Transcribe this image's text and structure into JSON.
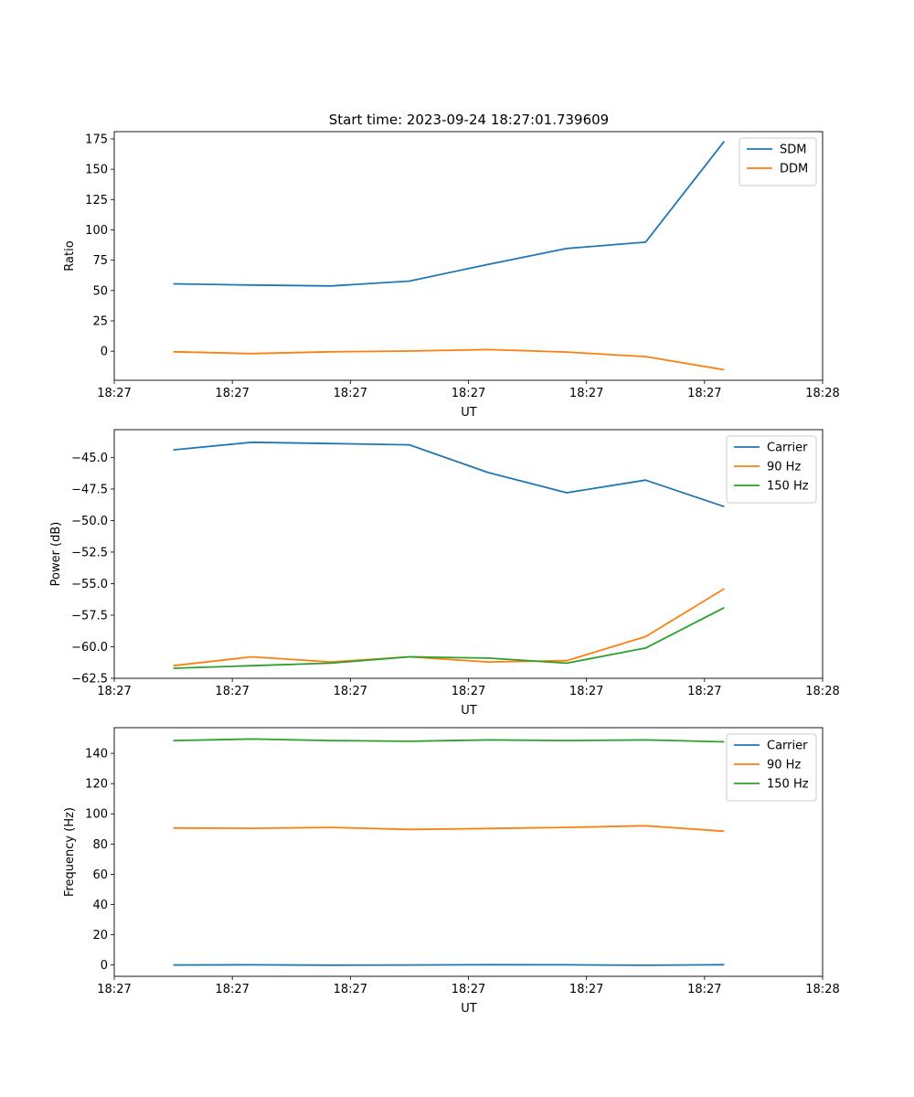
{
  "figure": {
    "title": "Start time: 2023-09-24 18:27:01.739609"
  },
  "chart_data": [
    {
      "type": "line",
      "title": "Start time: 2023-09-24 18:27:01.739609",
      "xlabel": "UT",
      "ylabel": "Ratio",
      "x": [
        1,
        2,
        3,
        4,
        5,
        6,
        7,
        8
      ],
      "xlim": [
        0.25,
        9.25
      ],
      "xticks": [
        0.25,
        1.75,
        3.25,
        4.75,
        6.25,
        7.75,
        9.25
      ],
      "xtick_labels": [
        "18:27",
        "18:27",
        "18:27",
        "18:27",
        "18:27",
        "18:27",
        "18:28"
      ],
      "ylim": [
        -24,
        181
      ],
      "yticks": [
        0,
        25,
        50,
        75,
        100,
        125,
        150,
        175
      ],
      "ytick_labels": [
        "0",
        "25",
        "50",
        "75",
        "100",
        "125",
        "150",
        "175"
      ],
      "legend_position": "top-right",
      "series": [
        {
          "name": "SDM",
          "color": "#1f77b4",
          "values": [
            55.5,
            54.5,
            53.8,
            57.8,
            71.6,
            84.7,
            89.9,
            173.0
          ]
        },
        {
          "name": "DDM",
          "color": "#ff7f0e",
          "values": [
            -0.5,
            -2.0,
            -0.5,
            0.1,
            1.3,
            -0.7,
            -4.5,
            -15.3
          ]
        }
      ]
    },
    {
      "type": "line",
      "title": "",
      "xlabel": "UT",
      "ylabel": "Power (dB)",
      "x": [
        1,
        2,
        3,
        4,
        5,
        6,
        7,
        8
      ],
      "xlim": [
        0.25,
        9.25
      ],
      "xticks": [
        0.25,
        1.75,
        3.25,
        4.75,
        6.25,
        7.75,
        9.25
      ],
      "xtick_labels": [
        "18:27",
        "18:27",
        "18:27",
        "18:27",
        "18:27",
        "18:27",
        "18:28"
      ],
      "ylim": [
        -62.5,
        -42.8
      ],
      "yticks": [
        -45.0,
        -47.5,
        -50.0,
        -52.5,
        -55.0,
        -57.5,
        -60.0,
        -62.5
      ],
      "ytick_labels": [
        "−45.0",
        "−47.5",
        "−50.0",
        "−52.5",
        "−55.0",
        "−57.5",
        "−60.0",
        "−62.5"
      ],
      "legend_position": "top-right",
      "series": [
        {
          "name": "Carrier",
          "color": "#1f77b4",
          "values": [
            -44.4,
            -43.8,
            -43.9,
            -44.0,
            -46.2,
            -47.8,
            -46.8,
            -48.9
          ]
        },
        {
          "name": "90 Hz",
          "color": "#ff7f0e",
          "values": [
            -61.5,
            -60.8,
            -61.2,
            -60.8,
            -61.2,
            -61.1,
            -59.2,
            -55.4
          ]
        },
        {
          "name": "150 Hz",
          "color": "#2ca02c",
          "values": [
            -61.7,
            -61.5,
            -61.3,
            -60.8,
            -60.9,
            -61.3,
            -60.1,
            -56.9
          ]
        }
      ]
    },
    {
      "type": "line",
      "title": "",
      "xlabel": "UT",
      "ylabel": "Frequency (Hz)",
      "x": [
        1,
        2,
        3,
        4,
        5,
        6,
        7,
        8
      ],
      "xlim": [
        0.25,
        9.25
      ],
      "xticks": [
        0.25,
        1.75,
        3.25,
        4.75,
        6.25,
        7.75,
        9.25
      ],
      "xtick_labels": [
        "18:27",
        "18:27",
        "18:27",
        "18:27",
        "18:27",
        "18:27",
        "18:28"
      ],
      "ylim": [
        -7.5,
        157
      ],
      "yticks": [
        0,
        20,
        40,
        60,
        80,
        100,
        120,
        140
      ],
      "ytick_labels": [
        "0",
        "20",
        "40",
        "60",
        "80",
        "100",
        "120",
        "140"
      ],
      "legend_position": "top-right",
      "series": [
        {
          "name": "Carrier",
          "color": "#1f77b4",
          "values": [
            0.0,
            0.1,
            -0.1,
            0.0,
            0.2,
            0.1,
            -0.2,
            0.2
          ]
        },
        {
          "name": "90 Hz",
          "color": "#ff7f0e",
          "values": [
            90.6,
            90.4,
            91.0,
            89.7,
            90.3,
            91.0,
            92.1,
            88.5
          ]
        },
        {
          "name": "150 Hz",
          "color": "#2ca02c",
          "values": [
            148.5,
            149.5,
            148.5,
            148.0,
            148.9,
            148.5,
            148.9,
            147.6
          ]
        }
      ]
    }
  ]
}
